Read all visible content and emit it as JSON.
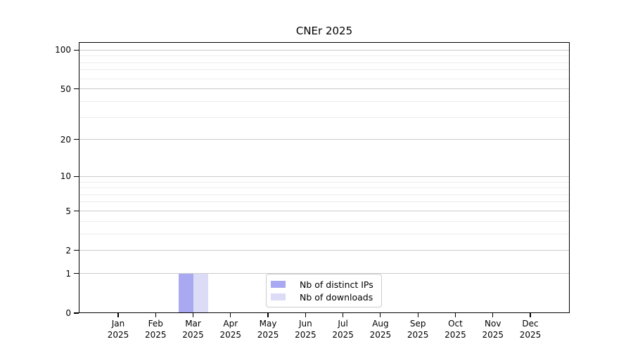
{
  "chart_data": {
    "type": "bar",
    "title": "CNEr 2025",
    "categories": [
      "Jan",
      "Feb",
      "Mar",
      "Apr",
      "May",
      "Jun",
      "Jul",
      "Aug",
      "Sep",
      "Oct",
      "Nov",
      "Dec"
    ],
    "year": "2025",
    "series": [
      {
        "name": "Nb of distinct IPs",
        "color": "#a9a9f1",
        "values": [
          0,
          0,
          1,
          0,
          0,
          0,
          0,
          0,
          0,
          0,
          0,
          0
        ]
      },
      {
        "name": "Nb of downloads",
        "color": "#dcdcf7",
        "values": [
          0,
          0,
          1,
          0,
          0,
          0,
          0,
          0,
          0,
          0,
          0,
          0
        ]
      }
    ],
    "xlabel": "",
    "ylabel": "",
    "y_scale": "log1p",
    "ylim": [
      0,
      115
    ],
    "y_tick_values": [
      100,
      50,
      20,
      10,
      5,
      2,
      1,
      0
    ],
    "y_tick_labels": [
      "100",
      "50",
      "20",
      "10",
      "5",
      "2",
      "1",
      "0"
    ],
    "y_minor_tick_values": [
      3,
      4,
      6,
      7,
      8,
      9,
      30,
      40,
      60,
      70,
      80,
      90
    ],
    "grid": true,
    "legend_position": "lower center"
  },
  "colors": {
    "grid_major": "#cbcbcb",
    "grid_minor": "#ececec",
    "axis": "#000000",
    "legend_border": "#cccccc",
    "background": "#ffffff"
  }
}
